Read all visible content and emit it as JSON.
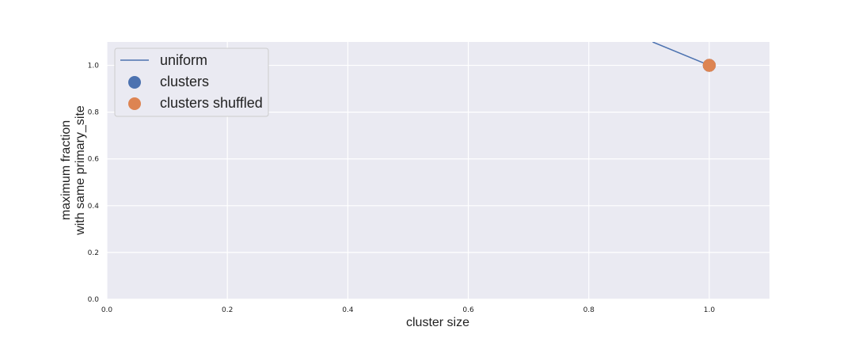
{
  "chart_data": {
    "type": "scatter",
    "xlabel": "cluster size",
    "ylabel": [
      "maximum fraction",
      "with same primary_site"
    ],
    "xlim": [
      0.0,
      1.1
    ],
    "ylim": [
      0.0,
      1.1
    ],
    "xticks": [
      "0.0",
      "0.2",
      "0.4",
      "0.6",
      "0.8",
      "1.0"
    ],
    "yticks": [
      "0.0",
      "0.2",
      "0.4",
      "0.6",
      "0.8",
      "1.0"
    ],
    "grid": true,
    "legend_position": "upper-left",
    "series": [
      {
        "name": "uniform",
        "kind": "line",
        "color": "#4c72b0",
        "x": [
          0.906,
          1.0
        ],
        "y": [
          1.1,
          1.0
        ]
      },
      {
        "name": "clusters",
        "kind": "scatter",
        "color": "#4c72b0",
        "x": [
          1.0
        ],
        "y": [
          1.0
        ]
      },
      {
        "name": "clusters shuffled",
        "kind": "scatter",
        "color": "#dd8452",
        "x": [
          1.0
        ],
        "y": [
          1.0
        ]
      }
    ]
  }
}
